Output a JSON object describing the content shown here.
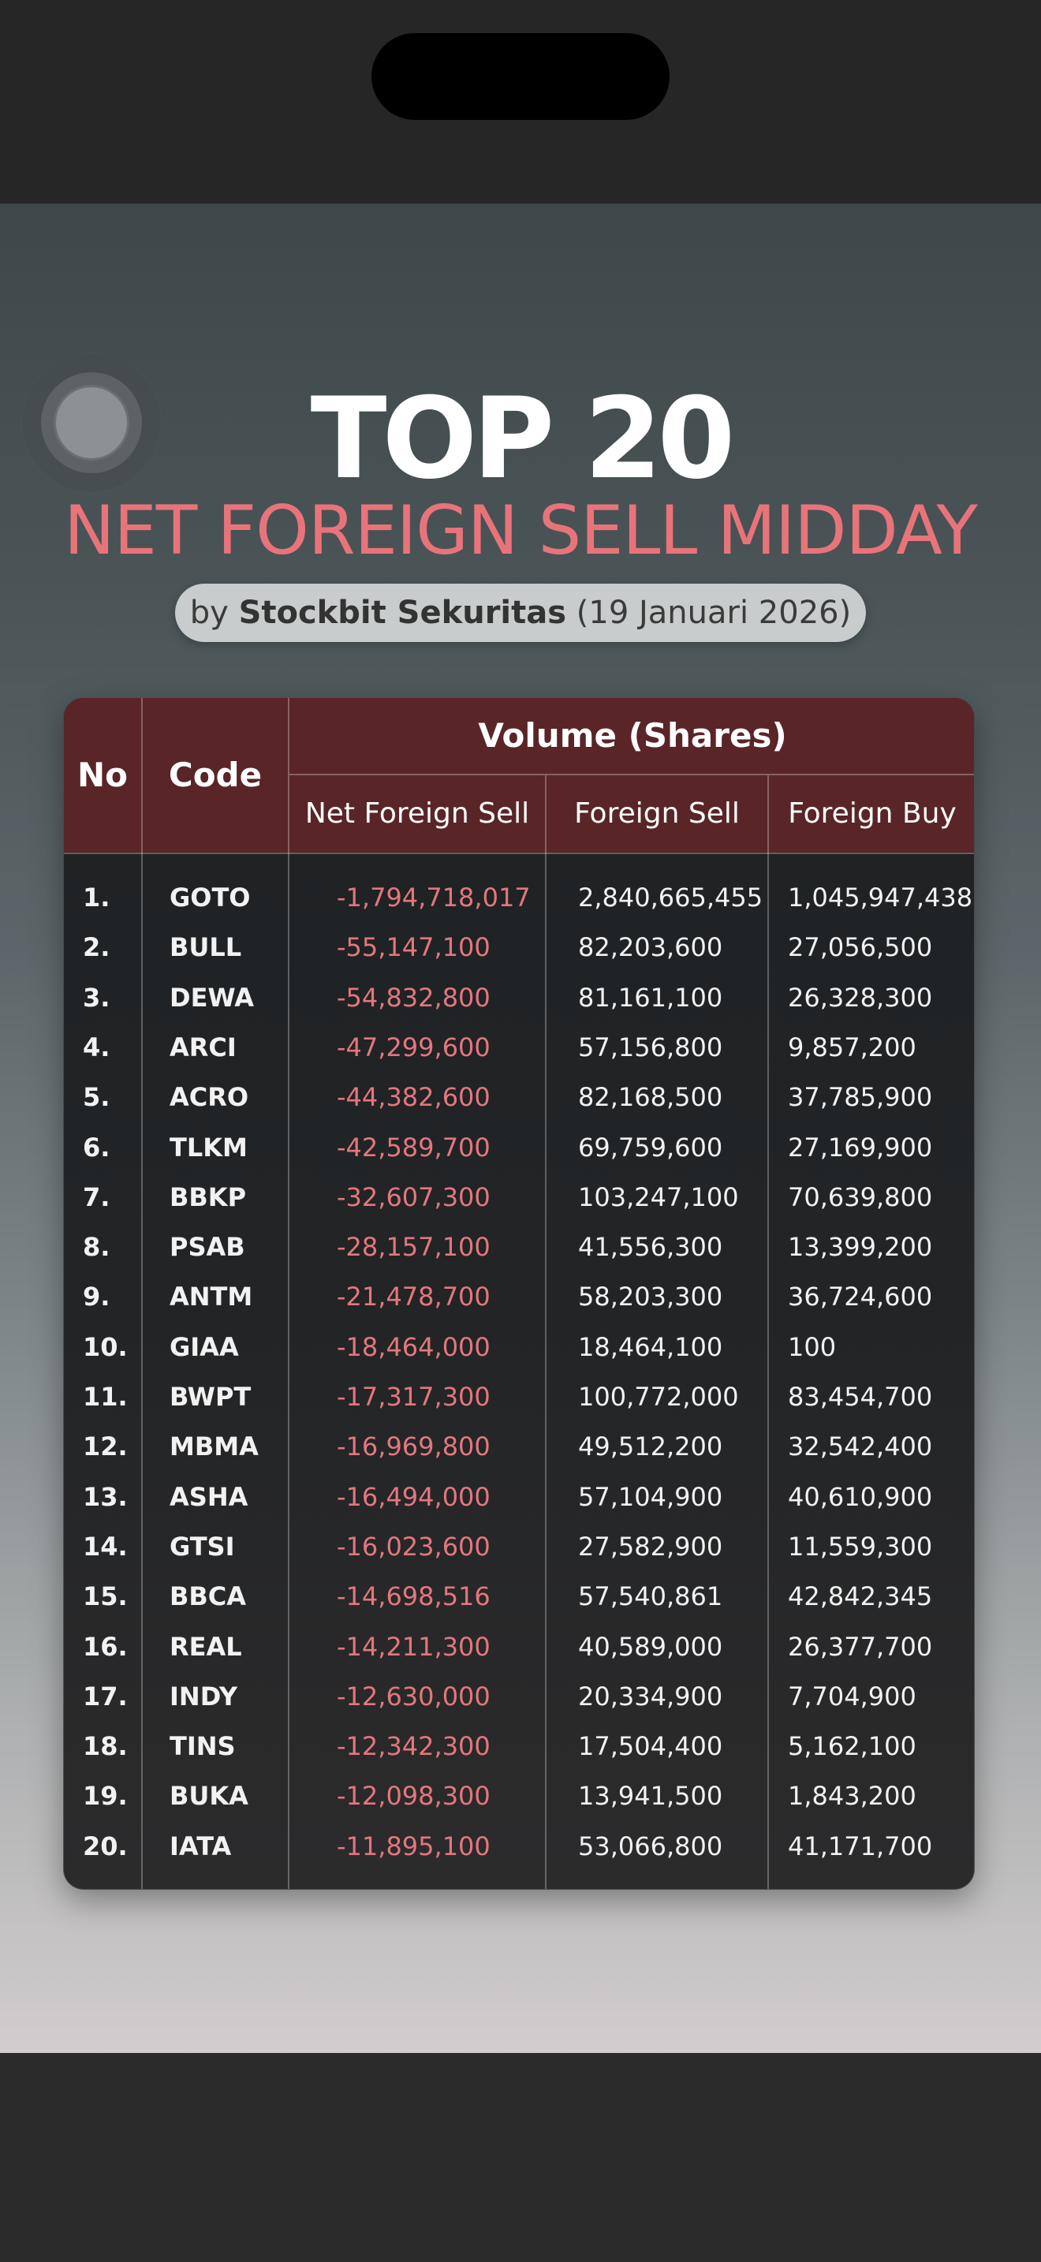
{
  "header": {
    "title": "TOP 20",
    "subtitle": "NET FOREIGN SELL MIDDAY",
    "byline_prefix": "by",
    "byline_brand": "Stockbit Sekuritas",
    "byline_date": "(19 Januari 2026)"
  },
  "colors": {
    "accent_red": "#e8747a",
    "header_bg": "#5a2527",
    "table_bg": "#1f2224"
  },
  "table": {
    "columns": {
      "no": "No",
      "code": "Code",
      "group": "Volume (Shares)",
      "net": "Net Foreign Sell",
      "sell": "Foreign Sell",
      "buy": "Foreign Buy"
    },
    "rows": [
      {
        "no": "1.",
        "code": "GOTO",
        "net": "-1,794,718,017",
        "sell": "2,840,665,455",
        "buy": "1,045,947,438"
      },
      {
        "no": "2.",
        "code": "BULL",
        "net": "-55,147,100",
        "sell": "82,203,600",
        "buy": "27,056,500"
      },
      {
        "no": "3.",
        "code": "DEWA",
        "net": "-54,832,800",
        "sell": "81,161,100",
        "buy": "26,328,300"
      },
      {
        "no": "4.",
        "code": "ARCI",
        "net": "-47,299,600",
        "sell": "57,156,800",
        "buy": "9,857,200"
      },
      {
        "no": "5.",
        "code": "ACRO",
        "net": "-44,382,600",
        "sell": "82,168,500",
        "buy": "37,785,900"
      },
      {
        "no": "6.",
        "code": "TLKM",
        "net": "-42,589,700",
        "sell": "69,759,600",
        "buy": "27,169,900"
      },
      {
        "no": "7.",
        "code": "BBKP",
        "net": "-32,607,300",
        "sell": "103,247,100",
        "buy": "70,639,800"
      },
      {
        "no": "8.",
        "code": "PSAB",
        "net": "-28,157,100",
        "sell": "41,556,300",
        "buy": "13,399,200"
      },
      {
        "no": "9.",
        "code": "ANTM",
        "net": "-21,478,700",
        "sell": "58,203,300",
        "buy": "36,724,600"
      },
      {
        "no": "10.",
        "code": "GIAA",
        "net": "-18,464,000",
        "sell": "18,464,100",
        "buy": "100"
      },
      {
        "no": "11.",
        "code": "BWPT",
        "net": "-17,317,300",
        "sell": "100,772,000",
        "buy": "83,454,700"
      },
      {
        "no": "12.",
        "code": "MBMA",
        "net": "-16,969,800",
        "sell": "49,512,200",
        "buy": "32,542,400"
      },
      {
        "no": "13.",
        "code": "ASHA",
        "net": "-16,494,000",
        "sell": "57,104,900",
        "buy": "40,610,900"
      },
      {
        "no": "14.",
        "code": "GTSI",
        "net": "-16,023,600",
        "sell": "27,582,900",
        "buy": "11,559,300"
      },
      {
        "no": "15.",
        "code": "BBCA",
        "net": "-14,698,516",
        "sell": "57,540,861",
        "buy": "42,842,345"
      },
      {
        "no": "16.",
        "code": "REAL",
        "net": "-14,211,300",
        "sell": "40,589,000",
        "buy": "26,377,700"
      },
      {
        "no": "17.",
        "code": "INDY",
        "net": "-12,630,000",
        "sell": "20,334,900",
        "buy": "7,704,900"
      },
      {
        "no": "18.",
        "code": "TINS",
        "net": "-12,342,300",
        "sell": "17,504,400",
        "buy": "5,162,100"
      },
      {
        "no": "19.",
        "code": "BUKA",
        "net": "-12,098,300",
        "sell": "13,941,500",
        "buy": "1,843,200"
      },
      {
        "no": "20.",
        "code": "IATA",
        "net": "-11,895,100",
        "sell": "53,066,800",
        "buy": "41,171,700"
      }
    ]
  }
}
